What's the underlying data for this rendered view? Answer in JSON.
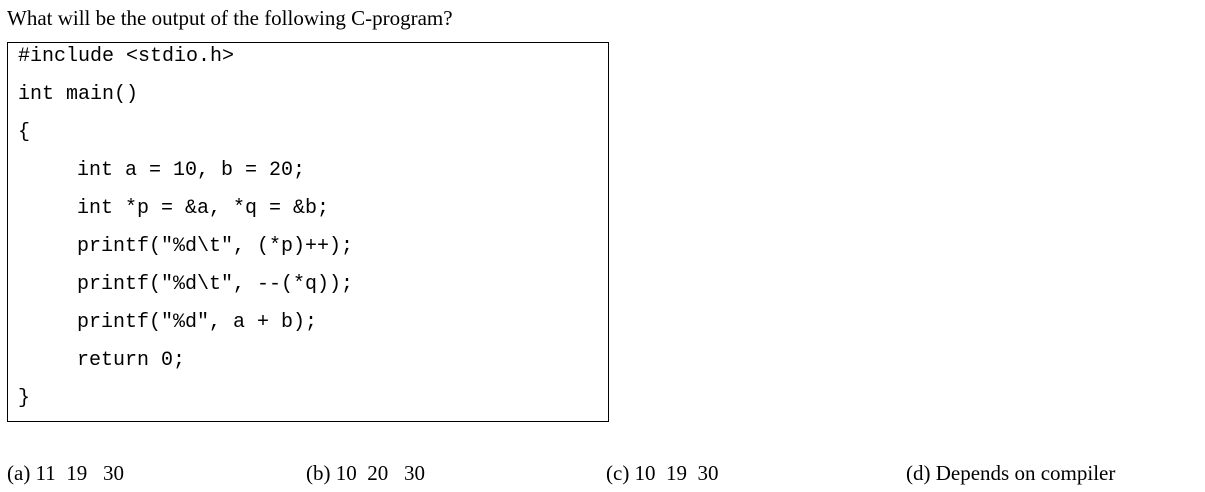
{
  "question": "What will be the output of the following C-program?",
  "code": [
    "#include <stdio.h>",
    "int main()",
    "{",
    "int a = 10, b = 20;",
    "int *p = &a, *q = &b;",
    "printf(\"%d\\t\", (*p)++);",
    "printf(\"%d\\t\", --(*q));",
    "printf(\"%d\", a + b);",
    "return 0;",
    "}"
  ],
  "options": [
    "(a) 11  19   30",
    "(b) 10  20   30",
    "(c) 10  19  30",
    "(d) Depends on compiler"
  ]
}
